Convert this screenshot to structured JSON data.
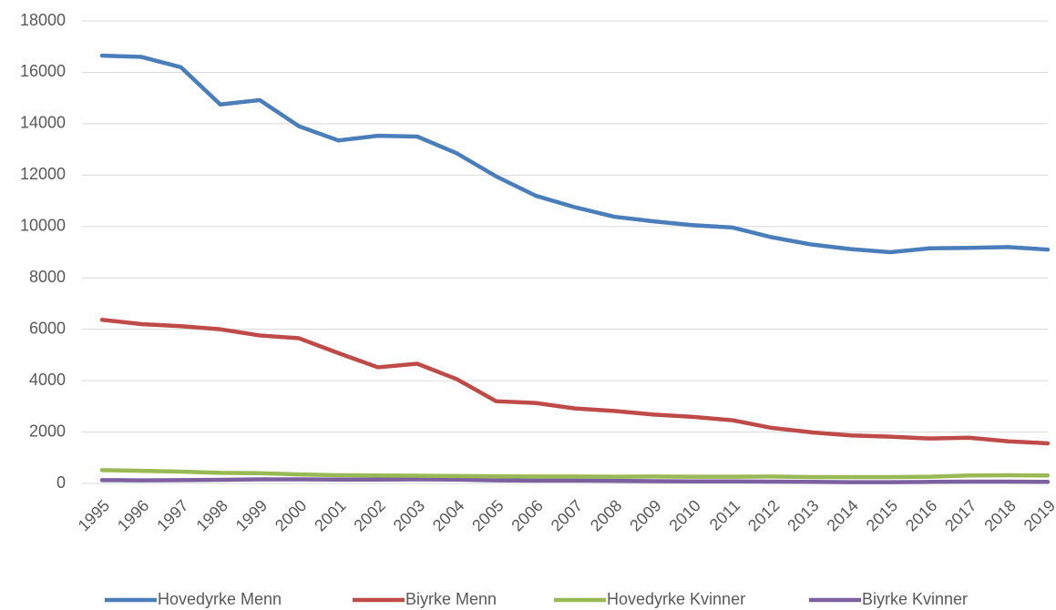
{
  "chart_data": {
    "type": "line",
    "categories": [
      "1995",
      "1996",
      "1997",
      "1998",
      "1999",
      "2000",
      "2001",
      "2002",
      "2003",
      "2004",
      "2005",
      "2006",
      "2007",
      "2008",
      "2009",
      "2010",
      "2011",
      "2012",
      "2013",
      "2014",
      "2015",
      "2016",
      "2017",
      "2018",
      "2019"
    ],
    "series": [
      {
        "name": "Hovedyrke Menn",
        "color": "#4a7ebb",
        "values": [
          16650,
          16600,
          16200,
          14750,
          14920,
          13900,
          13350,
          13530,
          13500,
          12850,
          11950,
          11200,
          10750,
          10380,
          10200,
          10050,
          9960,
          9580,
          9300,
          9120,
          9000,
          9150,
          9170,
          9200,
          9100
        ]
      },
      {
        "name": "Biyrke Menn",
        "color": "#be4b48",
        "values": [
          6370,
          6200,
          6120,
          6000,
          5760,
          5650,
          5070,
          4520,
          4660,
          4060,
          3200,
          3130,
          2920,
          2820,
          2680,
          2590,
          2460,
          2160,
          1990,
          1870,
          1820,
          1750,
          1780,
          1640,
          1560
        ]
      },
      {
        "name": "Hovedyrke Kvinner",
        "color": "#98b954",
        "values": [
          520,
          490,
          460,
          410,
          400,
          350,
          320,
          310,
          300,
          290,
          280,
          270,
          270,
          260,
          270,
          260,
          260,
          270,
          250,
          250,
          250,
          260,
          310,
          320,
          310
        ]
      },
      {
        "name": "Biyrke Kvinner",
        "color": "#7d60a0",
        "values": [
          130,
          120,
          130,
          140,
          160,
          160,
          150,
          150,
          160,
          150,
          120,
          110,
          110,
          100,
          90,
          80,
          80,
          70,
          60,
          50,
          50,
          60,
          70,
          70,
          60
        ]
      }
    ],
    "ylim": [
      0,
      18000
    ],
    "yticks": [
      0,
      2000,
      4000,
      6000,
      8000,
      10000,
      12000,
      14000,
      16000,
      18000
    ],
    "grid": true,
    "legend": "bottom"
  }
}
